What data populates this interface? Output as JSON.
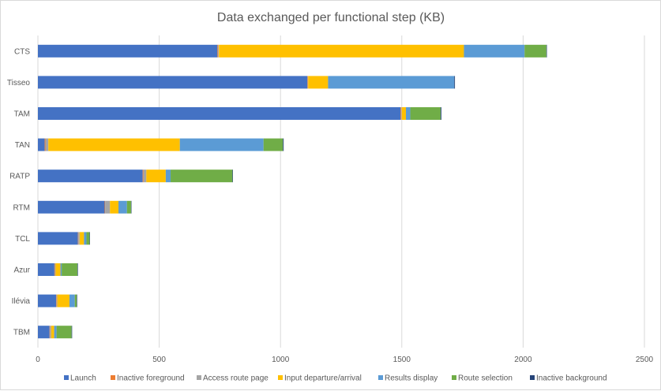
{
  "chart_data": {
    "type": "bar",
    "orientation": "horizontal",
    "stacked": true,
    "title": "Data exchanged per functional step (KB)",
    "xlabel": "",
    "ylabel": "",
    "xlim": [
      0,
      2500
    ],
    "x_ticks": [
      "0",
      "500",
      "1000",
      "1500",
      "2000",
      "2500"
    ],
    "grid": true,
    "legend_position": "bottom",
    "categories": [
      "CTS",
      "Tisseo",
      "TAM",
      "TAN",
      "RATP",
      "RTM",
      "TCL",
      "Azur",
      "Ilévia",
      "TBM"
    ],
    "series": [
      {
        "name": "Launch",
        "color": "#4472C4",
        "values": [
          740,
          1110,
          1495,
          28,
          432,
          275,
          165,
          68,
          75,
          48
        ]
      },
      {
        "name": "Inactive foreground",
        "color": "#ED7D31",
        "values": [
          3,
          2,
          3,
          3,
          3,
          2,
          2,
          2,
          2,
          2
        ]
      },
      {
        "name": "Access route page",
        "color": "#A5A5A5",
        "values": [
          3,
          2,
          2,
          12,
          12,
          20,
          5,
          3,
          3,
          5
        ]
      },
      {
        "name": "Input departure/arrival",
        "color": "#FFC000",
        "values": [
          1010,
          82,
          17,
          542,
          80,
          35,
          18,
          20,
          50,
          12
        ]
      },
      {
        "name": "Results display",
        "color": "#5B9BD5",
        "values": [
          250,
          520,
          18,
          345,
          20,
          35,
          10,
          5,
          22,
          10
        ]
      },
      {
        "name": "Route selection",
        "color": "#70AD47",
        "values": [
          90,
          0,
          125,
          80,
          255,
          17,
          13,
          65,
          8,
          62
        ]
      },
      {
        "name": "Inactive background",
        "color": "#264478",
        "values": [
          2,
          3,
          3,
          3,
          2,
          1,
          1,
          2,
          2,
          2
        ]
      }
    ]
  }
}
